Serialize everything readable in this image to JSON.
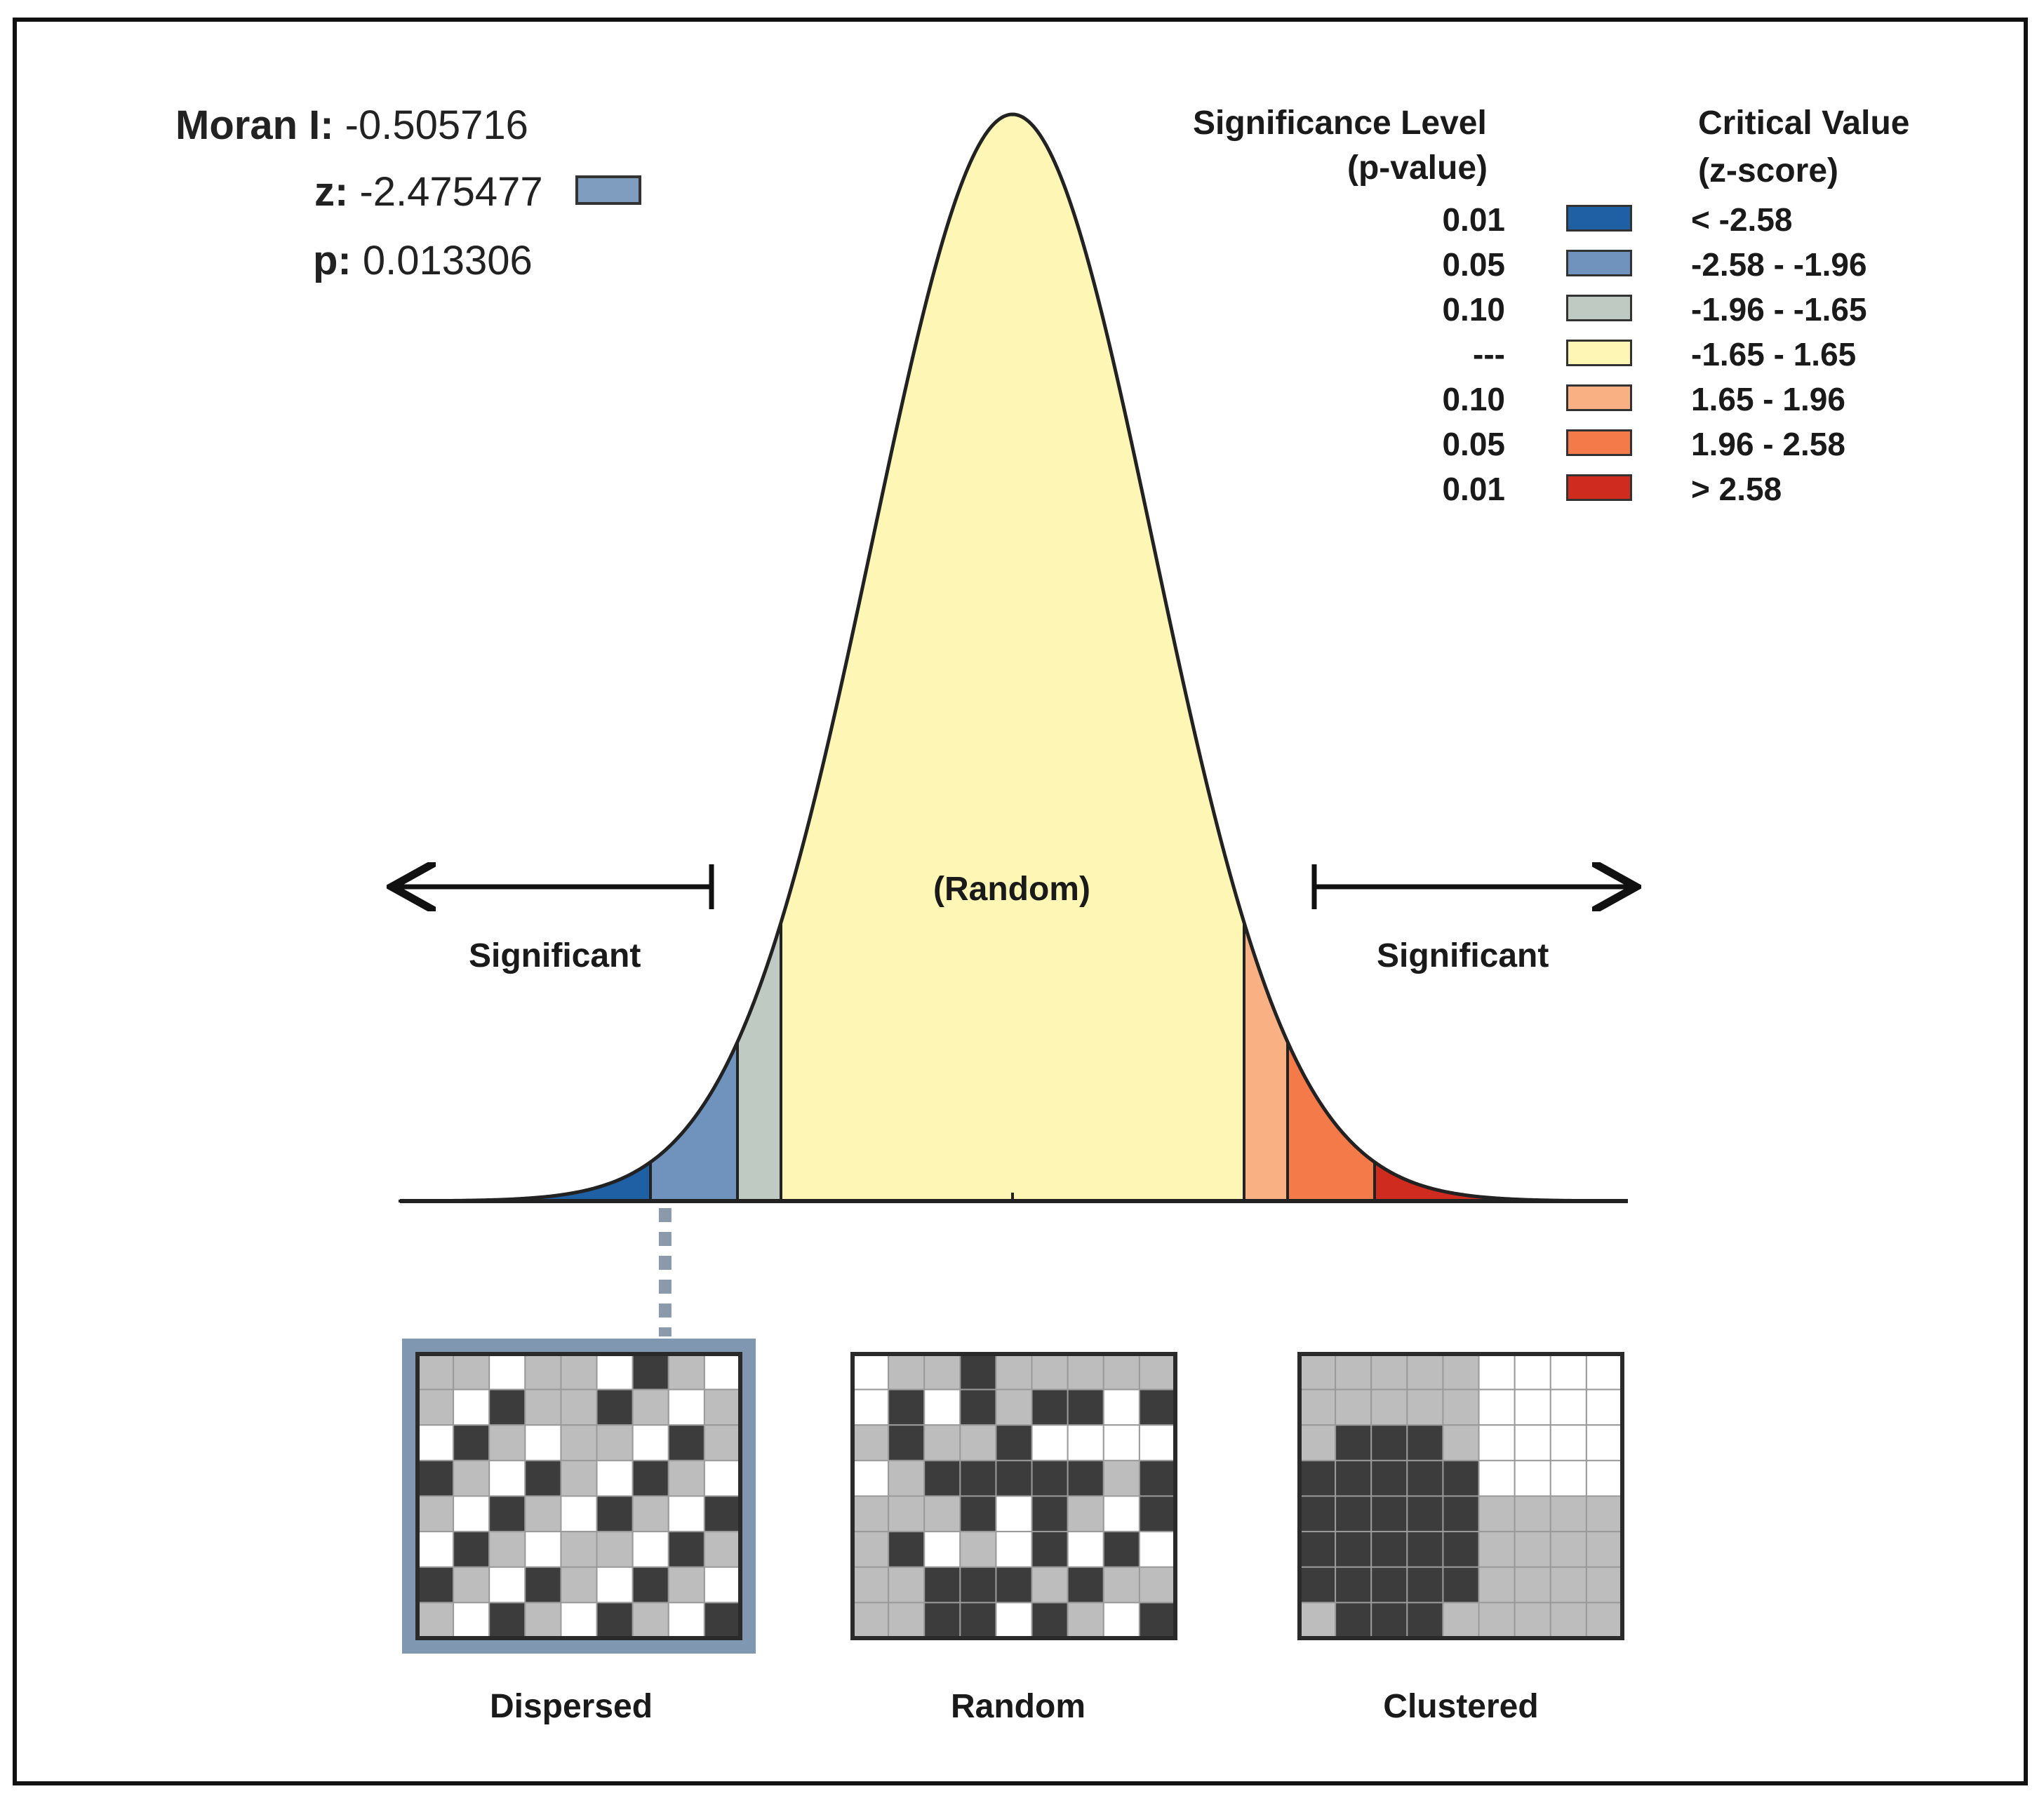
{
  "stats": {
    "moran_label": "Moran I:",
    "moran_value": "-0.505716",
    "z_label": "z:",
    "z_value": "-2.475477",
    "z_swatch_color": "#7f9dbf",
    "p_label": "p:",
    "p_value": "0.013306"
  },
  "legend": {
    "sig_heading_1": "Significance Level",
    "sig_heading_2": "(p-value)",
    "crit_heading_1": "Critical Value",
    "crit_heading_2": "(z-score)",
    "rows": [
      {
        "p": "0.01",
        "z": "< -2.58",
        "color": "#1f5fa3"
      },
      {
        "p": "0.05",
        "z": "-2.58 - -1.96",
        "color": "#6f93bd"
      },
      {
        "p": "0.10",
        "z": "-1.96 - -1.65",
        "color": "#bfcac2"
      },
      {
        "p": "---",
        "z": "-1.65 - 1.65",
        "color": "#fdf6b5"
      },
      {
        "p": "0.10",
        "z": "1.65 - 1.96",
        "color": "#f9b183"
      },
      {
        "p": "0.05",
        "z": "1.96 - 2.58",
        "color": "#f47a4a"
      },
      {
        "p": "0.01",
        "z": "> 2.58",
        "color": "#cf2b1e"
      }
    ]
  },
  "curve": {
    "center_label": "(Random)",
    "left_label": "Significant",
    "right_label": "Significant",
    "observed_z": -2.475477
  },
  "maps": [
    {
      "label": "Dispersed",
      "highlighted": true
    },
    {
      "label": "Random",
      "highlighted": false
    },
    {
      "label": "Clustered",
      "highlighted": false
    }
  ],
  "colors": {
    "outline": "#222222",
    "map_dark": "#3c3c3c",
    "map_gray": "#bdbdbd",
    "map_white": "#ffffff",
    "map_highlight": "#7f97b1"
  }
}
